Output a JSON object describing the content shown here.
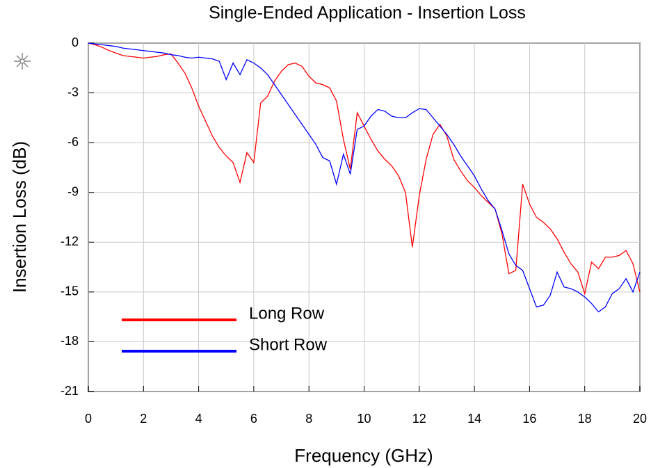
{
  "chart_data": {
    "type": "line",
    "title": "Single-Ended Application - Insertion Loss",
    "x_label": "Frequency (GHz)",
    "y_label": "Insertion Loss (dB)",
    "x": [
      0,
      0.25,
      0.5,
      0.75,
      1,
      1.25,
      1.5,
      1.75,
      2,
      2.25,
      2.5,
      2.75,
      3,
      3.25,
      3.5,
      3.75,
      4,
      4.25,
      4.5,
      4.75,
      5,
      5.25,
      5.5,
      5.75,
      6,
      6.25,
      6.5,
      6.75,
      7,
      7.25,
      7.5,
      7.75,
      8,
      8.25,
      8.5,
      8.75,
      9,
      9.25,
      9.5,
      9.75,
      10,
      10.25,
      10.5,
      10.75,
      11,
      11.25,
      11.5,
      11.75,
      12,
      12.25,
      12.5,
      12.75,
      13,
      13.25,
      13.5,
      13.75,
      14,
      14.25,
      14.5,
      14.75,
      15,
      15.25,
      15.5,
      15.75,
      16,
      16.25,
      16.5,
      16.75,
      17,
      17.25,
      17.5,
      17.75,
      18,
      18.25,
      18.5,
      18.75,
      19,
      19.25,
      19.5,
      19.75,
      20
    ],
    "series": [
      {
        "name": "Long Row",
        "color": "#ff0000",
        "values": [
          0,
          -0.1,
          -0.25,
          -0.45,
          -0.6,
          -0.75,
          -0.8,
          -0.85,
          -0.9,
          -0.85,
          -0.8,
          -0.7,
          -0.65,
          -1.2,
          -1.8,
          -2.7,
          -3.8,
          -4.7,
          -5.6,
          -6.3,
          -6.8,
          -7.2,
          -8.4,
          -6.6,
          -7.2,
          -3.6,
          -3.2,
          -2.3,
          -1.7,
          -1.3,
          -1.2,
          -1.4,
          -2.0,
          -2.4,
          -2.5,
          -2.7,
          -3.5,
          -5.8,
          -7.6,
          -4.2,
          -5.0,
          -5.8,
          -6.5,
          -7.0,
          -7.4,
          -8.0,
          -9.0,
          -12.3,
          -9.2,
          -7.0,
          -5.5,
          -4.9,
          -5.6,
          -7.0,
          -7.7,
          -8.3,
          -8.7,
          -9.2,
          -9.6,
          -10.0,
          -11.5,
          -13.9,
          -13.7,
          -8.5,
          -9.7,
          -10.5,
          -10.8,
          -11.2,
          -11.8,
          -12.6,
          -13.3,
          -13.8,
          -15.1,
          -13.2,
          -13.6,
          -12.9,
          -12.9,
          -12.8,
          -12.5,
          -13.3,
          -15.0
        ]
      },
      {
        "name": "Short Row",
        "color": "#0000ff",
        "values": [
          0,
          -0.05,
          -0.1,
          -0.15,
          -0.2,
          -0.3,
          -0.35,
          -0.4,
          -0.45,
          -0.5,
          -0.55,
          -0.6,
          -0.7,
          -0.75,
          -0.85,
          -0.9,
          -0.85,
          -0.9,
          -0.95,
          -1.1,
          -2.2,
          -1.2,
          -1.9,
          -1.0,
          -1.2,
          -1.5,
          -1.9,
          -2.5,
          -3.1,
          -3.7,
          -4.3,
          -4.9,
          -5.5,
          -6.1,
          -6.9,
          -7.1,
          -8.5,
          -6.7,
          -7.9,
          -5.2,
          -5.0,
          -4.4,
          -4.0,
          -4.1,
          -4.4,
          -4.5,
          -4.5,
          -4.2,
          -3.95,
          -4.0,
          -4.5,
          -5.0,
          -5.5,
          -6.1,
          -6.8,
          -7.4,
          -8.0,
          -8.8,
          -9.5,
          -10.0,
          -11.3,
          -12.7,
          -13.4,
          -13.7,
          -14.8,
          -15.9,
          -15.8,
          -15.2,
          -13.8,
          -14.7,
          -14.8,
          -15.0,
          -15.3,
          -15.7,
          -16.2,
          -15.9,
          -15.1,
          -14.8,
          -14.2,
          -15.0,
          -13.8
        ]
      }
    ],
    "xlim": [
      0,
      20
    ],
    "xticks": [
      0,
      2,
      4,
      6,
      8,
      10,
      12,
      14,
      16,
      18,
      20
    ],
    "ylim": [
      -21,
      0
    ],
    "yticks": [
      0,
      -3,
      -6,
      -9,
      -12,
      -15,
      -18,
      -21
    ],
    "grid": true,
    "legend": "lower left"
  }
}
